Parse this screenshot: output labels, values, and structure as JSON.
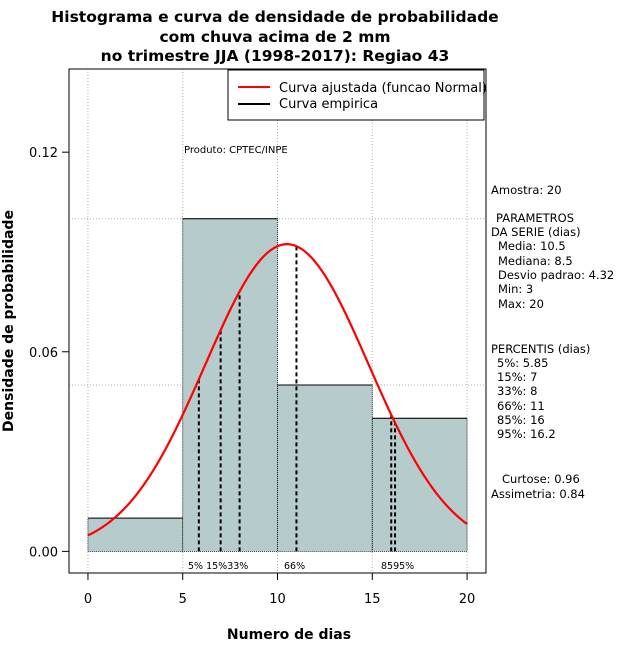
{
  "chart_data": {
    "type": "histogram",
    "title": [
      "Histograma e curva de densidade de probabilidade",
      "com chuva acima de 2 mm",
      "no trimestre JJA (1998-2017): Regiao 43"
    ],
    "xlabel": "Numero de dias",
    "ylabel": "Densidade de probabilidade",
    "xlim": [
      -1,
      21
    ],
    "ylim": [
      -0.0065,
      0.145
    ],
    "x_ticks": [
      0,
      5,
      10,
      15,
      20
    ],
    "x_tick_labels": [
      "0",
      "5",
      "10",
      "15",
      "20"
    ],
    "y_ticks": [
      0.0,
      0.06,
      0.12
    ],
    "y_tick_labels": [
      "0.00",
      "0.06",
      "0.12"
    ],
    "grid": true,
    "grid_x": [
      0,
      5,
      10,
      15,
      20
    ],
    "grid_y": [
      0.05,
      0.1
    ],
    "bins": [
      {
        "from": 0,
        "to": 5,
        "density": 0.01
      },
      {
        "from": 5,
        "to": 10,
        "density": 0.1
      },
      {
        "from": 10,
        "to": 15,
        "density": 0.05
      },
      {
        "from": 15,
        "to": 20,
        "density": 0.04
      }
    ],
    "bar_color": "#b6cbcb",
    "fitted_curve": {
      "name": "Curva ajustada (funcao Normal)",
      "distribution": "normal",
      "mean": 10.5,
      "sd": 4.32,
      "x_range": [
        0,
        20
      ],
      "color": "#ff0000"
    },
    "empirical_curve": {
      "name": "Curva empirica",
      "color": "#000000"
    },
    "percentile_lines": [
      {
        "label": "5%",
        "x": 5.85
      },
      {
        "label": "15%",
        "x": 7
      },
      {
        "label": "33%",
        "x": 8
      },
      {
        "label": "66%",
        "x": 11
      },
      {
        "label": "85%",
        "x": 16
      },
      {
        "label": "95%",
        "x": 16.2
      }
    ],
    "percentile_marker_text": "5% 15%33%",
    "percentile_marker_66": "66%",
    "percentile_marker_85_95": "8595%",
    "legend_position": "top-right",
    "product_label": "Produto: CPTEC/INPE"
  },
  "side_panel": {
    "amostra": "Amostra: 20",
    "parametros_header1": "PARAMETROS",
    "parametros_header2": "DA SERIE (dias)",
    "media": "Media: 10.5",
    "mediana": "Mediana: 8.5",
    "desvio": "Desvio padrao: 4.32",
    "min": "Min: 3",
    "max": "Max: 20",
    "percentis_header": "PERCENTIS (dias)",
    "p5": "5%: 5.85",
    "p15": "15%: 7",
    "p33": "33%: 8",
    "p66": "66%: 11",
    "p85": "85%: 16",
    "p95": "95%: 16.2",
    "curtose": "Curtose: 0.96",
    "assimetria": "Assimetria: 0.84"
  }
}
